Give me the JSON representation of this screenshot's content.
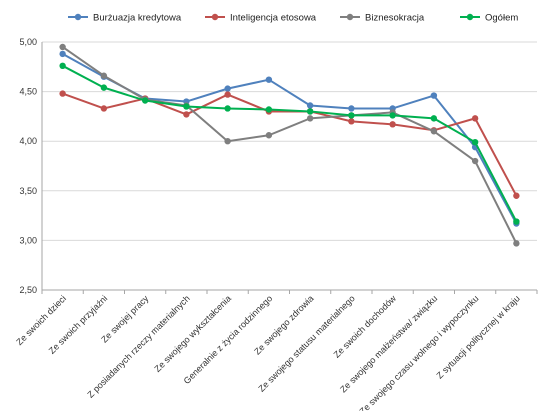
{
  "chart_data": {
    "type": "line",
    "categories": [
      "Ze swoich dzieci",
      "Ze swoich przyjaźni",
      "Ze swojej pracy",
      "Z posiadanych rzeczy materialnych",
      "Ze swojego wykształcenia",
      "Generalnie z życia rodzinnego",
      "Ze swojego zdrowia",
      "Ze swojego statusu materialnego",
      "Ze swoich dochodów",
      "Ze swojego małżeństwa/ związku",
      "Ze swojego czasu wolnego i wypoczynku",
      "Z sytuacji politycznej w kraju"
    ],
    "series": [
      {
        "name": "Burżuazja kredytowa",
        "color": "#4f81bd",
        "values": [
          4.88,
          4.65,
          4.43,
          4.4,
          4.53,
          4.62,
          4.36,
          4.33,
          4.33,
          4.46,
          3.94,
          3.17
        ]
      },
      {
        "name": "Inteligencja etosowa",
        "color": "#c0504d",
        "values": [
          4.48,
          4.33,
          4.43,
          4.27,
          4.47,
          4.3,
          4.3,
          4.2,
          4.17,
          4.11,
          4.23,
          3.45
        ]
      },
      {
        "name": "Biznesokracja",
        "color": "#7f7f7f",
        "values": [
          4.95,
          4.66,
          4.42,
          4.36,
          4.0,
          4.06,
          4.23,
          4.26,
          4.29,
          4.1,
          3.8,
          2.97
        ]
      },
      {
        "name": "Ogółem",
        "color": "#00b050",
        "values": [
          4.76,
          4.54,
          4.41,
          4.35,
          4.33,
          4.32,
          4.3,
          4.26,
          4.26,
          4.23,
          3.99,
          3.19
        ]
      }
    ],
    "yticks": [
      "2,50",
      "3,00",
      "3,50",
      "4,00",
      "4,50",
      "5,00"
    ],
    "ylim": [
      2.5,
      5.0
    ],
    "grid": true,
    "legend": "top",
    "title": "",
    "xlabel": "",
    "ylabel": ""
  }
}
